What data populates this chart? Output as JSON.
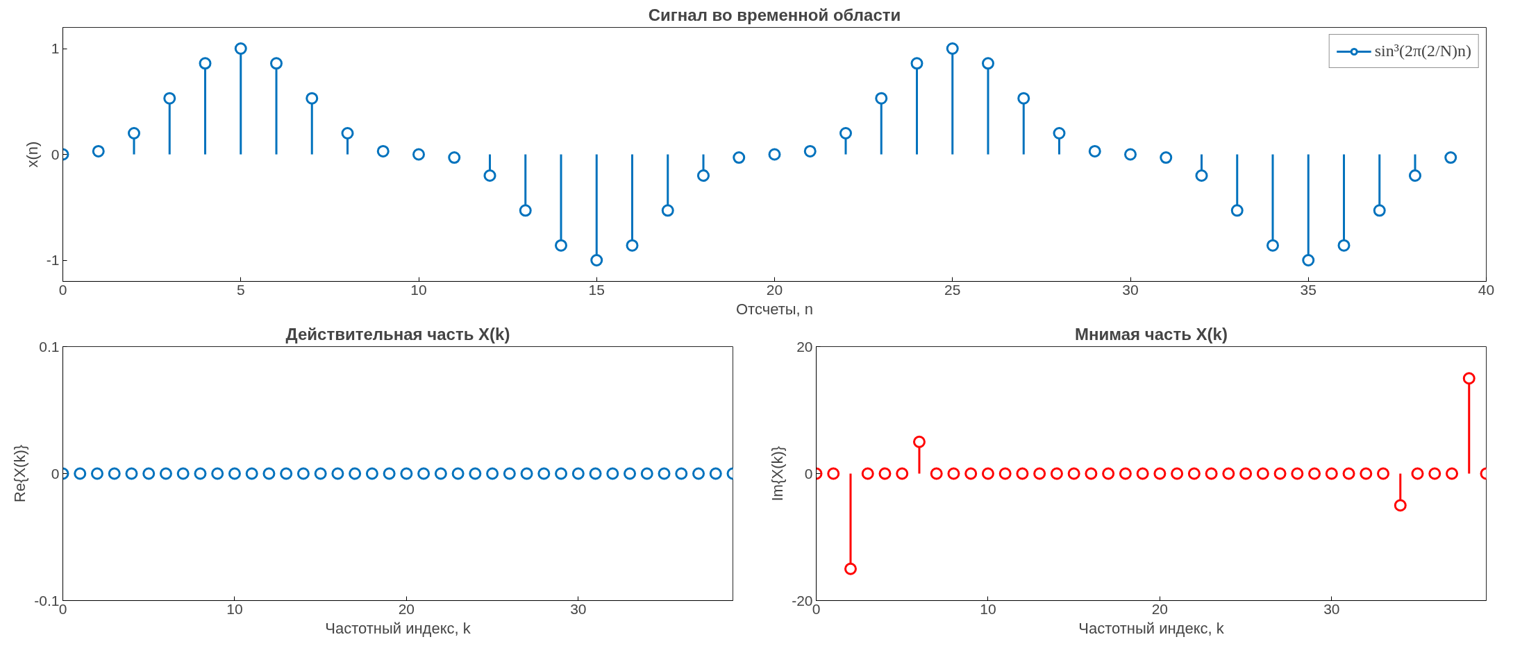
{
  "chart_data": [
    {
      "type": "lollipop",
      "title": "Сигнал во временной области",
      "xlabel": "Отсчеты, n",
      "ylabel": "x(n)",
      "x": [
        0,
        1,
        2,
        3,
        4,
        5,
        6,
        7,
        8,
        9,
        10,
        11,
        12,
        13,
        14,
        15,
        16,
        17,
        18,
        19,
        20,
        21,
        22,
        23,
        24,
        25,
        26,
        27,
        28,
        29,
        30,
        31,
        32,
        33,
        34,
        35,
        36,
        37,
        38,
        39
      ],
      "series": [
        {
          "name": "sin³(2π(2/N)n)",
          "color": "#0072bd",
          "values": [
            0,
            0.03,
            0.2,
            0.53,
            0.86,
            1,
            0.86,
            0.53,
            0.2,
            0.03,
            0,
            -0.03,
            -0.2,
            -0.53,
            -0.86,
            -1,
            -0.86,
            -0.53,
            -0.2,
            -0.03,
            0,
            0.03,
            0.2,
            0.53,
            0.86,
            1,
            0.86,
            0.53,
            0.2,
            0.03,
            0,
            -0.03,
            -0.2,
            -0.53,
            -0.86,
            -1,
            -0.86,
            -0.53,
            -0.2,
            -0.03
          ]
        }
      ],
      "xlim": [
        0,
        40
      ],
      "xticks": [
        0,
        5,
        10,
        15,
        20,
        25,
        30,
        35,
        40
      ],
      "ylim": [
        -1.2,
        1.2
      ],
      "yticks": [
        -1,
        0,
        1
      ],
      "marker": "circle",
      "grid": false,
      "legend": "top right"
    },
    {
      "type": "lollipop",
      "title": "Действительная часть X(k)",
      "xlabel": "Частотный индекс, k",
      "ylabel": "Re{X(k)}",
      "x": [
        0,
        1,
        2,
        3,
        4,
        5,
        6,
        7,
        8,
        9,
        10,
        11,
        12,
        13,
        14,
        15,
        16,
        17,
        18,
        19,
        20,
        21,
        22,
        23,
        24,
        25,
        26,
        27,
        28,
        29,
        30,
        31,
        32,
        33,
        34,
        35,
        36,
        37,
        38,
        39
      ],
      "series": [
        {
          "color": "#0072bd",
          "values": [
            0,
            0,
            0,
            0,
            0,
            0,
            0,
            0,
            0,
            0,
            0,
            0,
            0,
            0,
            0,
            0,
            0,
            0,
            0,
            0,
            0,
            0,
            0,
            0,
            0,
            0,
            0,
            0,
            0,
            0,
            0,
            0,
            0,
            0,
            0,
            0,
            0,
            0,
            0,
            0
          ]
        }
      ],
      "xlim": [
        0,
        39
      ],
      "xticks": [
        0,
        10,
        20,
        30
      ],
      "ylim": [
        -0.1,
        0.1
      ],
      "yticks": [
        -0.1,
        0,
        0.1
      ],
      "marker": "circle",
      "grid": false
    },
    {
      "type": "lollipop",
      "title": "Мнимая часть X(k)",
      "xlabel": "Частотный индекс, k",
      "ylabel": "Im{X(k)}",
      "x": [
        0,
        1,
        2,
        3,
        4,
        5,
        6,
        7,
        8,
        9,
        10,
        11,
        12,
        13,
        14,
        15,
        16,
        17,
        18,
        19,
        20,
        21,
        22,
        23,
        24,
        25,
        26,
        27,
        28,
        29,
        30,
        31,
        32,
        33,
        34,
        35,
        36,
        37,
        38,
        39
      ],
      "series": [
        {
          "color": "#ff0000",
          "values": [
            0,
            0,
            -15,
            0,
            0,
            0,
            5,
            0,
            0,
            0,
            0,
            0,
            0,
            0,
            0,
            0,
            0,
            0,
            0,
            0,
            0,
            0,
            0,
            0,
            0,
            0,
            0,
            0,
            0,
            0,
            0,
            0,
            0,
            0,
            -5,
            0,
            0,
            0,
            15,
            0
          ]
        }
      ],
      "xlim": [
        0,
        39
      ],
      "xticks": [
        0,
        10,
        20,
        30
      ],
      "ylim": [
        -20,
        20
      ],
      "yticks": [
        -20,
        0,
        20
      ],
      "marker": "circle",
      "grid": false
    }
  ]
}
